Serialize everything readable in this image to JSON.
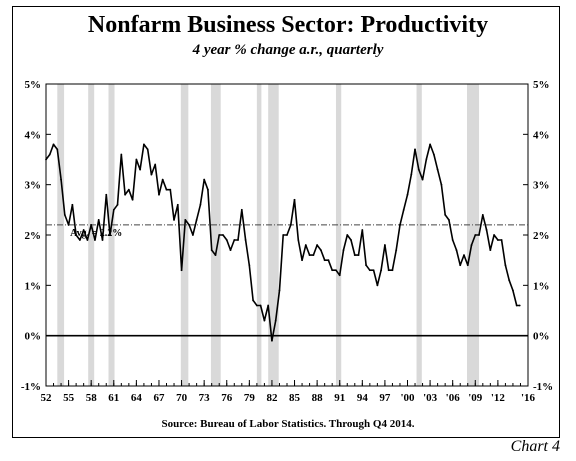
{
  "chart_data": {
    "type": "line",
    "title": "Nonfarm Business Sector: Productivity",
    "subtitle": "4 year % change a.r., quarterly",
    "source": "Source:  Bureau of Labor Statistics.  Through Q4 2014.",
    "chart_number": "Chart 4",
    "y_tick_labels": [
      "5%",
      "4%",
      "3%",
      "2%",
      "1%",
      "0%",
      "-1%"
    ],
    "y_ticks": [
      5,
      4,
      3,
      2,
      1,
      0,
      -1
    ],
    "ylim": [
      -1,
      5
    ],
    "xlim": [
      1952,
      2016
    ],
    "x_tick_labels": [
      "52",
      "55",
      "58",
      "61",
      "64",
      "67",
      "70",
      "73",
      "76",
      "79",
      "82",
      "85",
      "88",
      "91",
      "94",
      "97",
      "'00",
      "'03",
      "'06",
      "'09",
      "'12",
      "'16"
    ],
    "x_ticks": [
      1952,
      1955,
      1958,
      1961,
      1964,
      1967,
      1970,
      1973,
      1976,
      1979,
      1982,
      1985,
      1988,
      1991,
      1994,
      1997,
      2000,
      2003,
      2006,
      2009,
      2012,
      2016
    ],
    "grid": false,
    "average": {
      "value": 2.2,
      "label": "Avg. = 2.2%"
    },
    "recessions": [
      [
        1953.5,
        1954.4
      ],
      [
        1957.6,
        1958.4
      ],
      [
        1960.3,
        1961.1
      ],
      [
        1969.9,
        1970.9
      ],
      [
        1973.9,
        1975.2
      ],
      [
        1980.0,
        1980.6
      ],
      [
        1981.5,
        1982.9
      ],
      [
        1990.5,
        1991.2
      ],
      [
        2001.2,
        2001.9
      ],
      [
        2007.9,
        2009.5
      ]
    ],
    "series": [
      {
        "x": [
          1952.0,
          1952.5,
          1953.0,
          1953.5,
          1954.0,
          1954.5,
          1955.0,
          1955.5,
          1956.0,
          1956.5,
          1957.0,
          1957.5,
          1958.0,
          1958.5,
          1959.0,
          1959.5,
          1960.0,
          1960.5,
          1961.0,
          1961.5,
          1962.0,
          1962.5,
          1963.0,
          1963.5,
          1964.0,
          1964.5,
          1965.0,
          1965.5,
          1966.0,
          1966.5,
          1967.0,
          1967.5,
          1968.0,
          1968.5,
          1969.0,
          1969.5,
          1970.0,
          1970.5,
          1971.0,
          1971.5,
          1972.0,
          1972.5,
          1973.0,
          1973.5,
          1974.0,
          1974.5,
          1975.0,
          1975.5,
          1976.0,
          1976.5,
          1977.0,
          1977.5,
          1978.0,
          1978.5,
          1979.0,
          1979.5,
          1980.0,
          1980.5,
          1981.0,
          1981.5,
          1982.0,
          1982.5,
          1983.0,
          1983.5,
          1984.0,
          1984.5,
          1985.0,
          1985.5,
          1986.0,
          1986.5,
          1987.0,
          1987.5,
          1988.0,
          1988.5,
          1989.0,
          1989.5,
          1990.0,
          1990.5,
          1991.0,
          1991.5,
          1992.0,
          1992.5,
          1993.0,
          1993.5,
          1994.0,
          1994.5,
          1995.0,
          1995.5,
          1996.0,
          1996.5,
          1997.0,
          1997.5,
          1998.0,
          1998.5,
          1999.0,
          1999.5,
          2000.0,
          2000.5,
          2001.0,
          2001.5,
          2002.0,
          2002.5,
          2003.0,
          2003.5,
          2004.0,
          2004.5,
          2005.0,
          2005.5,
          2006.0,
          2006.5,
          2007.0,
          2007.5,
          2008.0,
          2008.5,
          2009.0,
          2009.5,
          2010.0,
          2010.5,
          2011.0,
          2011.5,
          2012.0,
          2012.5,
          2013.0,
          2013.5,
          2014.0,
          2014.5,
          2014.9
        ],
        "values": [
          3.5,
          3.6,
          3.8,
          3.7,
          3.1,
          2.4,
          2.2,
          2.6,
          2.0,
          1.9,
          2.1,
          1.9,
          2.2,
          1.9,
          2.3,
          1.9,
          2.8,
          2.0,
          2.5,
          2.6,
          3.6,
          2.8,
          2.9,
          2.7,
          3.5,
          3.3,
          3.8,
          3.7,
          3.2,
          3.4,
          2.8,
          3.1,
          2.9,
          2.9,
          2.3,
          2.6,
          1.3,
          2.3,
          2.2,
          2.0,
          2.3,
          2.6,
          3.1,
          2.9,
          1.7,
          1.6,
          2.0,
          2.0,
          1.9,
          1.7,
          1.9,
          1.9,
          2.5,
          1.9,
          1.4,
          0.7,
          0.6,
          0.6,
          0.3,
          0.6,
          -0.1,
          0.3,
          0.9,
          2.0,
          2.0,
          2.2,
          2.7,
          1.9,
          1.5,
          1.8,
          1.6,
          1.6,
          1.8,
          1.7,
          1.5,
          1.5,
          1.3,
          1.3,
          1.2,
          1.7,
          2.0,
          1.9,
          1.6,
          1.6,
          2.1,
          1.4,
          1.3,
          1.3,
          1.0,
          1.3,
          1.8,
          1.3,
          1.3,
          1.7,
          2.2,
          2.5,
          2.8,
          3.2,
          3.7,
          3.3,
          3.1,
          3.5,
          3.8,
          3.6,
          3.3,
          3.0,
          2.4,
          2.3,
          1.9,
          1.7,
          1.4,
          1.6,
          1.4,
          1.8,
          2.0,
          2.0,
          2.4,
          2.1,
          1.7,
          2.0,
          1.9,
          1.9,
          1.4,
          1.1,
          0.9,
          0.6,
          0.6
        ]
      }
    ]
  }
}
